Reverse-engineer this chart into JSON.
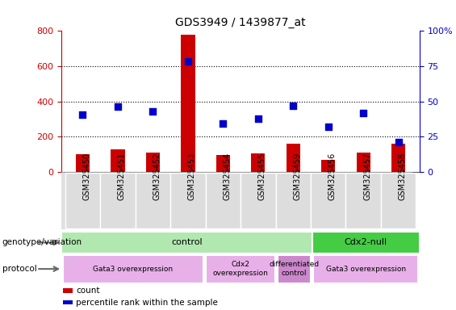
{
  "title": "GDS3949 / 1439877_at",
  "samples": [
    "GSM325450",
    "GSM325451",
    "GSM325452",
    "GSM325453",
    "GSM325454",
    "GSM325455",
    "GSM325459",
    "GSM325456",
    "GSM325457",
    "GSM325458"
  ],
  "counts": [
    100,
    130,
    110,
    780,
    95,
    105,
    160,
    70,
    110,
    160
  ],
  "percentile_ranks_left": [
    325,
    370,
    345,
    630,
    275,
    305,
    375,
    255,
    335,
    170
  ],
  "left_ylim": [
    0,
    800
  ],
  "right_ylim": [
    0,
    100
  ],
  "left_yticks": [
    0,
    200,
    400,
    600,
    800
  ],
  "right_yticks": [
    0,
    25,
    50,
    75,
    100
  ],
  "bar_color": "#cc0000",
  "dot_color": "#0000cc",
  "bar_width": 0.4,
  "dotted_lines": [
    200,
    400,
    600
  ],
  "genotype_row": [
    {
      "label": "control",
      "start": 0,
      "end": 7,
      "color": "#b0e8b0"
    },
    {
      "label": "Cdx2-null",
      "start": 7,
      "end": 10,
      "color": "#44cc44"
    }
  ],
  "protocol_row": [
    {
      "label": "Gata3 overexpression",
      "start": 0,
      "end": 4,
      "color": "#e8b0e8"
    },
    {
      "label": "Cdx2\noverexpression",
      "start": 4,
      "end": 6,
      "color": "#e8b0e8"
    },
    {
      "label": "differentiated\ncontrol",
      "start": 6,
      "end": 7,
      "color": "#cc88cc"
    },
    {
      "label": "Gata3 overexpression",
      "start": 7,
      "end": 10,
      "color": "#e8b0e8"
    }
  ],
  "left_axis_color": "#cc0000",
  "right_axis_color": "#0000cc",
  "legend_items": [
    {
      "color": "#cc0000",
      "label": "count"
    },
    {
      "color": "#0000cc",
      "label": "percentile rank within the sample"
    }
  ]
}
